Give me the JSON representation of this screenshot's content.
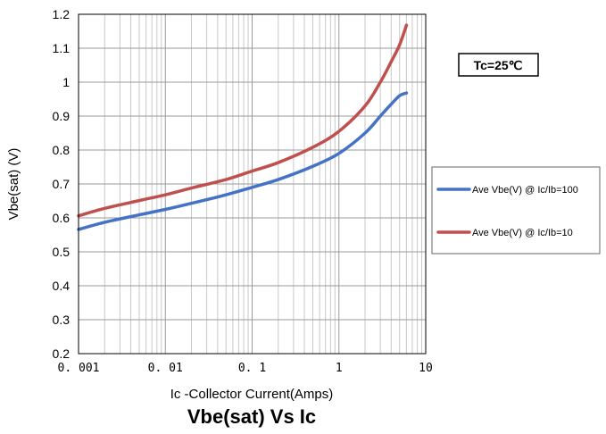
{
  "chart_data": {
    "type": "line",
    "title": "Vbe(sat) Vs Ic",
    "xlabel": "Ic -Collector Current(Amps)",
    "ylabel": "Vbe(sat) (V)",
    "xscale": "log",
    "xlim": [
      0.001,
      10
    ],
    "ylim": [
      0.2,
      1.2
    ],
    "grid": true,
    "x_tick_labels": [
      "0. 001",
      "0. 01",
      "0. 1",
      "1",
      "10"
    ],
    "y_tick_labels": [
      "0.2",
      "0.3",
      "0.4",
      "0.5",
      "0.6",
      "0.7",
      "0.8",
      "0.9",
      "1",
      "1.1",
      "1.2"
    ],
    "legend_position": "right",
    "annotation": "Tc=25℃",
    "series": [
      {
        "name": "Ave Vbe(V) @ Ic/Ib=100",
        "color": "#4472c4",
        "points": [
          [
            0.001,
            0.566
          ],
          [
            0.002,
            0.587
          ],
          [
            0.005,
            0.609
          ],
          [
            0.01,
            0.625
          ],
          [
            0.02,
            0.643
          ],
          [
            0.05,
            0.668
          ],
          [
            0.1,
            0.69
          ],
          [
            0.2,
            0.713
          ],
          [
            0.5,
            0.752
          ],
          [
            1,
            0.79
          ],
          [
            2,
            0.85
          ],
          [
            3,
            0.9
          ],
          [
            4,
            0.935
          ],
          [
            5,
            0.96
          ],
          [
            6,
            0.968
          ]
        ]
      },
      {
        "name": "Ave Vbe(V) @ Ic/Ib=10",
        "color": "#c0504d",
        "points": [
          [
            0.001,
            0.606
          ],
          [
            0.002,
            0.628
          ],
          [
            0.005,
            0.651
          ],
          [
            0.01,
            0.668
          ],
          [
            0.02,
            0.688
          ],
          [
            0.05,
            0.713
          ],
          [
            0.1,
            0.738
          ],
          [
            0.2,
            0.763
          ],
          [
            0.5,
            0.808
          ],
          [
            1,
            0.855
          ],
          [
            2,
            0.93
          ],
          [
            3,
            1.0
          ],
          [
            4,
            1.06
          ],
          [
            5,
            1.11
          ],
          [
            6,
            1.168
          ]
        ]
      }
    ]
  }
}
